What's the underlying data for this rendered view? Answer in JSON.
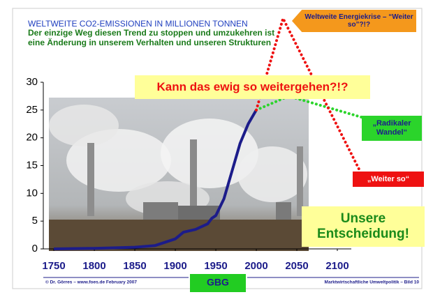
{
  "chart_data": {
    "type": "line",
    "title": "WELTWEITE CO2-EMISSIONEN IN MILLIONEN TONNEN",
    "subtitle": [
      "Der einzige Weg diesen Trend zu stoppen und umzukehren ist",
      "eine Änderung in unserem Verhalten und unseren Strukturen"
    ],
    "xlim": [
      1737,
      2150
    ],
    "xticks": [
      1750,
      1800,
      1850,
      1900,
      1950,
      2000,
      2050,
      2100
    ],
    "ylim": [
      0,
      30
    ],
    "yticks": [
      0,
      5,
      10,
      15,
      20,
      25,
      30
    ],
    "series": [
      {
        "color": "#1c1c8a",
        "line_style": "solid",
        "x": [
          1750,
          1800,
          1850,
          1875,
          1900,
          1910,
          1925,
          1940,
          1945,
          1950,
          1960,
          1970,
          1980,
          1990,
          2000
        ],
        "values": [
          0,
          0.1,
          0.3,
          0.6,
          1.8,
          3,
          3.5,
          4.5,
          5.5,
          6,
          9,
          14,
          19,
          22.5,
          25
        ]
      },
      {
        "name": "„Radikaler Wandel“",
        "color": "#2bd42b",
        "line_style": "dotted",
        "x": [
          2000,
          2040,
          2135
        ],
        "values": [
          25,
          27.5,
          23.5
        ]
      },
      {
        "name": "„Weiter so“",
        "color": "#ee1111",
        "line_style": "dotted",
        "x": [
          2000,
          2033,
          2128
        ],
        "values": [
          25,
          41.5,
          14
        ]
      }
    ],
    "annotations": [
      "Weltweite Energiekrise – “Weiter so”?!?",
      "Kann das ewig so weitergehen?!?",
      "Unsere Entscheidung!"
    ]
  },
  "footer": {
    "left": "© Dr. Görres – www.foes.de  February 2007",
    "center": "GBG",
    "right": "Marktwirtschaftliche Umweltpolitik – Bild 10"
  }
}
